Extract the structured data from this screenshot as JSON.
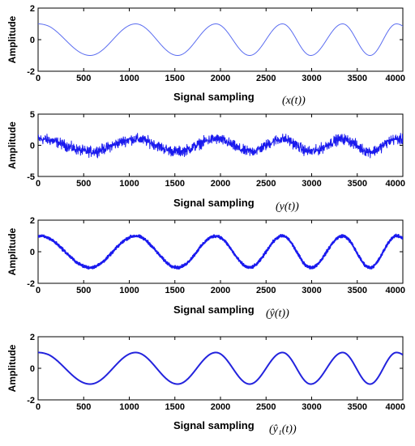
{
  "chart_data": [
    {
      "type": "line",
      "ylabel": "Amplitude",
      "xlabel": "Signal sampling",
      "xlabel_math": "(x(t))",
      "xlim": [
        0,
        4000
      ],
      "ylim": [
        -2,
        2
      ],
      "xticks": [
        "0",
        "500",
        "1000",
        "1500",
        "2000",
        "2500",
        "3000",
        "3500",
        "4000"
      ],
      "yticks": [
        "2",
        "0",
        "-2"
      ],
      "grid": false,
      "color": "#5a6cf0",
      "line_width": 1,
      "series": [
        {
          "kind": "chirp",
          "amplitude": 1.0,
          "noise_amplitude": 0,
          "x": [
            0,
            120,
            570,
            1070,
            1530,
            1950,
            2320,
            2680,
            2990,
            3340,
            3640,
            3930,
            4000
          ],
          "y": [
            1.0,
            0.85,
            -1.0,
            1.0,
            -1.0,
            1.0,
            -1.0,
            1.0,
            -1.0,
            1.0,
            -1.0,
            1.0,
            0.85
          ]
        }
      ]
    },
    {
      "type": "line",
      "ylabel": "Amplitude",
      "xlabel": "Signal sampling",
      "xlabel_math": "(y(t))",
      "xlim": [
        0,
        4000
      ],
      "ylim": [
        -5,
        5
      ],
      "xticks": [
        "0",
        "500",
        "1000",
        "1500",
        "2000",
        "2500",
        "3000",
        "3500",
        "4000"
      ],
      "yticks": [
        "5",
        "0",
        "-5"
      ],
      "grid": false,
      "color": "#1a1aee",
      "line_width": 1,
      "series": [
        {
          "kind": "chirp",
          "amplitude": 1.0,
          "noise_amplitude": 1.2,
          "x": [
            0,
            120,
            570,
            1070,
            1530,
            1950,
            2320,
            2680,
            2990,
            3340,
            3640,
            3930,
            4000
          ],
          "y": [
            1.0,
            0.85,
            -1.0,
            1.0,
            -1.0,
            1.0,
            -1.0,
            1.0,
            -1.0,
            1.0,
            -1.0,
            1.0,
            0.85
          ]
        }
      ]
    },
    {
      "type": "line",
      "ylabel": "Amplitude",
      "xlabel": "Signal sampling",
      "xlabel_math": "(ŷ(t))",
      "xlim": [
        0,
        4000
      ],
      "ylim": [
        -2,
        2
      ],
      "xticks": [
        "0",
        "500",
        "1000",
        "1500",
        "2000",
        "2500",
        "3000",
        "3500",
        "4000"
      ],
      "yticks": [
        "2",
        "0",
        "-2"
      ],
      "grid": false,
      "color": "#1a1aee",
      "line_width": 2,
      "series": [
        {
          "kind": "chirp",
          "amplitude": 1.0,
          "noise_amplitude": 0.12,
          "x": [
            0,
            120,
            570,
            1070,
            1530,
            1950,
            2320,
            2680,
            2990,
            3340,
            3640,
            3930,
            4000
          ],
          "y": [
            1.0,
            0.85,
            -1.0,
            1.0,
            -1.0,
            1.0,
            -1.0,
            1.0,
            -1.0,
            1.0,
            -1.0,
            1.0,
            0.85
          ]
        }
      ]
    },
    {
      "type": "line",
      "ylabel": "Amplitude",
      "xlabel": "Signal sampling",
      "xlabel_math": "(ŷ₁(t))",
      "xlim": [
        0,
        4000
      ],
      "ylim": [
        -2,
        2
      ],
      "xticks": [
        "0",
        "500",
        "1000",
        "1500",
        "2000",
        "2500",
        "3000",
        "3500",
        "4000"
      ],
      "yticks": [
        "2",
        "0",
        "-2"
      ],
      "grid": false,
      "color": "#2323dd",
      "line_width": 2,
      "series": [
        {
          "kind": "chirp",
          "amplitude": 1.0,
          "noise_amplitude": 0,
          "x": [
            0,
            120,
            570,
            1070,
            1530,
            1950,
            2320,
            2680,
            2990,
            3340,
            3640,
            3930,
            4000
          ],
          "y": [
            1.0,
            0.85,
            -1.0,
            1.0,
            -1.0,
            1.0,
            -1.0,
            1.0,
            -1.0,
            1.0,
            -1.0,
            1.0,
            0.85
          ]
        }
      ]
    }
  ]
}
